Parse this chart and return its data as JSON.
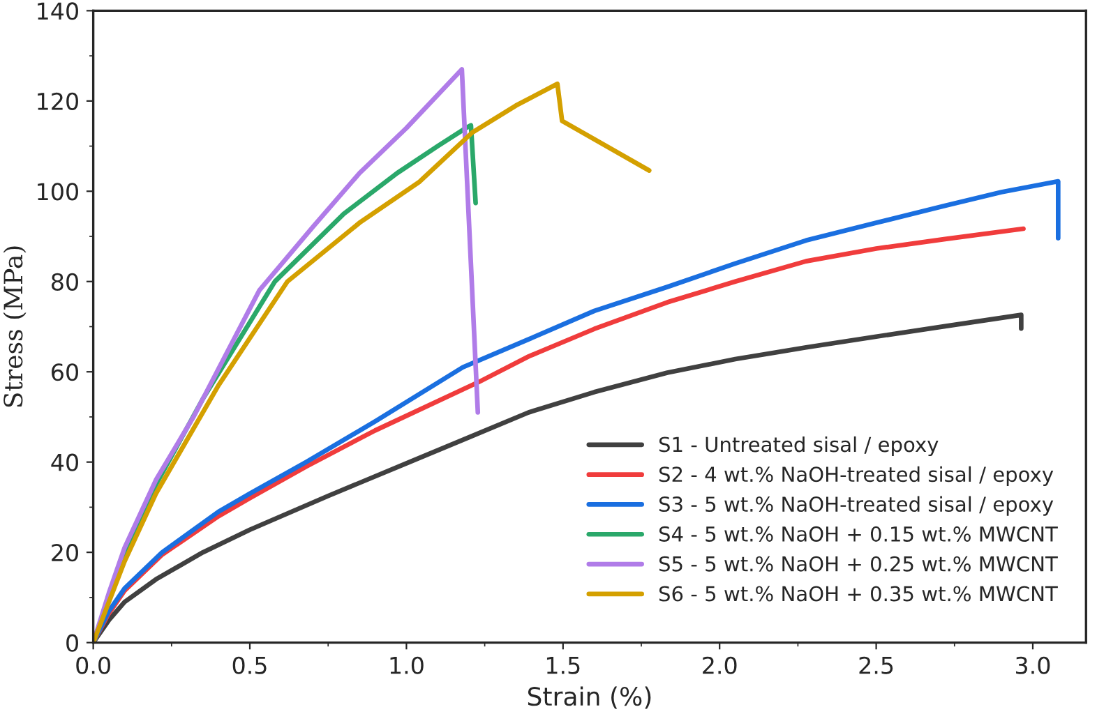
{
  "chart_data": {
    "type": "line",
    "xlabel": "Strain (%)",
    "ylabel": "Stress (MPa)",
    "xlim": [
      0,
      3.17
    ],
    "ylim": [
      0,
      140
    ],
    "xticks": [
      {
        "value": 0,
        "label": "0.0"
      },
      0.5,
      {
        "value": 1,
        "label": "1.0"
      },
      1.5,
      {
        "value": 2,
        "label": "2.0"
      },
      2.5,
      {
        "value": 3,
        "label": "3.0"
      }
    ],
    "yticks": [
      0,
      20,
      40,
      60,
      80,
      100,
      120,
      140
    ],
    "grid": false,
    "legend": "bottom right",
    "marker": "none",
    "line_style": "solid",
    "series": [
      {
        "name": "S1 - Untreated sisal / epoxy",
        "color": "#404040",
        "x": [
          0,
          0.05,
          0.1,
          0.2,
          0.35,
          0.5,
          0.75,
          1.01,
          1.2,
          1.39,
          1.6,
          1.833,
          2.05,
          2.276,
          2.5,
          2.72,
          2.963,
          2.963
        ],
        "values": [
          0,
          5,
          9,
          14,
          20,
          25,
          32.5,
          40,
          45.5,
          51,
          55.5,
          59.8,
          62.8,
          65.4,
          67.8,
          70.1,
          72.6,
          69.6
        ]
      },
      {
        "name": "S2 - 4 wt.% NaOH-treated sisal / epoxy",
        "color": "#f03c3c",
        "x": [
          0,
          0.05,
          0.1,
          0.22,
          0.4,
          0.5,
          0.68,
          0.9,
          1.23,
          1.39,
          1.6,
          1.833,
          2.05,
          2.276,
          2.5,
          2.72,
          2.97
        ],
        "values": [
          0,
          6.5,
          11.5,
          19.5,
          28,
          32,
          39,
          47,
          57.7,
          63.4,
          69.5,
          75.4,
          80,
          84.5,
          87.3,
          89.4,
          91.7
        ]
      },
      {
        "name": "S3 - 5 wt.% NaOH-treated sisal / epoxy",
        "color": "#1a6fe0",
        "x": [
          0,
          0.05,
          0.1,
          0.22,
          0.4,
          0.5,
          0.68,
          0.9,
          1.18,
          1.39,
          1.6,
          1.833,
          2.05,
          2.276,
          2.5,
          2.72,
          2.9,
          3.081,
          3.081
        ],
        "values": [
          0,
          7,
          12,
          20,
          29,
          33,
          40,
          49,
          61,
          67.2,
          73.5,
          78.8,
          84,
          89.1,
          93,
          96.8,
          99.8,
          102.2,
          89.6
        ]
      },
      {
        "name": "S4 - 5 wt.% NaOH + 0.15 wt.% MWCNT",
        "color": "#2aa86a",
        "x": [
          0,
          0.05,
          0.1,
          0.2,
          0.35,
          0.58,
          0.8,
          0.97,
          1.1,
          1.19,
          1.206,
          1.221
        ],
        "values": [
          0,
          10,
          20,
          35,
          54,
          80,
          95,
          104,
          110,
          114,
          114.6,
          97.4
        ]
      },
      {
        "name": "S5 - 5 wt.% NaOH + 0.25 wt.% MWCNT",
        "color": "#b07ce8",
        "x": [
          0,
          0.05,
          0.1,
          0.2,
          0.32,
          0.53,
          0.7,
          0.85,
          1.0,
          1.177,
          1.228
        ],
        "values": [
          0,
          11,
          21,
          36,
          50,
          78,
          92,
          104,
          114,
          127,
          51
        ]
      },
      {
        "name": "S6 - 5 wt.% NaOH + 0.35 wt.% MWCNT",
        "color": "#d4a000",
        "x": [
          0,
          0.05,
          0.1,
          0.2,
          0.4,
          0.62,
          0.85,
          1.04,
          1.21,
          1.35,
          1.482,
          1.497,
          1.775
        ],
        "values": [
          0,
          9,
          18,
          33,
          57,
          80,
          93,
          102,
          113,
          119,
          123.8,
          115.6,
          104.6
        ]
      }
    ]
  }
}
